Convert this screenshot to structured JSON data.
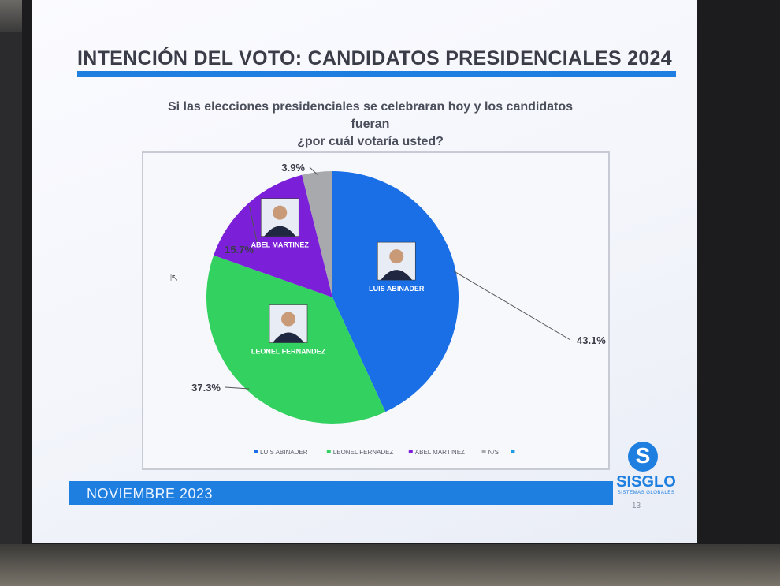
{
  "slide": {
    "title": "INTENCIÓN DEL VOTO: CANDIDATOS PRESIDENCIALES 2024",
    "question_line1": "Si las elecciones presidenciales se celebraran hoy y los candidatos fueran",
    "question_line2": "¿por cuál votaría usted?",
    "footer_date": "NOVIEMBRE  2023",
    "logo_name": "SISGLO",
    "logo_tagline": "SISTEMAS GLOBALES",
    "page_number": "13"
  },
  "chart_data": {
    "type": "pie",
    "categories": [
      "LUIS ABINADER",
      "LEONEL FERNANDEZ",
      "ABEL MARTINEZ",
      "N/S"
    ],
    "values": [
      43.1,
      37.3,
      15.7,
      3.9
    ],
    "value_labels": [
      "43.1%",
      "37.3%",
      "15.7%",
      "3.9%"
    ],
    "slice_labels": [
      "LUIS ABINADER",
      "LEONEL FERNANDEZ",
      "ABEL MARTINEZ",
      ""
    ],
    "legend_labels": [
      "LUIS ABINADER",
      "LEONEL FERNADEZ",
      "ABEL MARTINEZ",
      "N/S",
      ""
    ],
    "colors": [
      "#1a6fe6",
      "#33d160",
      "#7b1fd8",
      "#a7a9ad"
    ],
    "legend_colors": [
      "#1a6fe6",
      "#33d160",
      "#7b1fd8",
      "#a7a9ad",
      "#1a9be6"
    ],
    "legend_position": "bottom"
  }
}
